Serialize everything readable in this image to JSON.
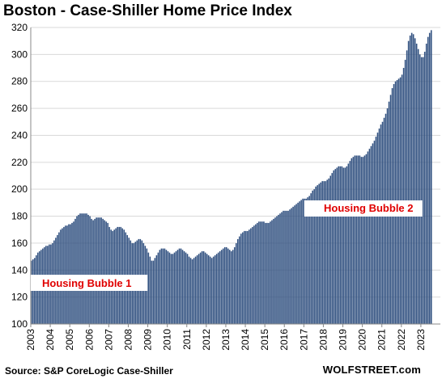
{
  "title": "Boston - Case-Shiller Home Price Index",
  "source": "Source: S&P CoreLogic Case-Shiller",
  "brand": "WOLFSTREET.com",
  "chart_data": {
    "type": "bar",
    "title": "Boston - Case-Shiller Home Price Index",
    "xlabel": "",
    "ylabel": "",
    "ylim": [
      100,
      320
    ],
    "yticks": [
      100,
      120,
      140,
      160,
      180,
      200,
      220,
      240,
      260,
      280,
      300,
      320
    ],
    "grid": true,
    "bar_color": "#2f4f7f",
    "frequency": "monthly",
    "x_start": "2003-01",
    "years": [
      2003,
      2004,
      2005,
      2006,
      2007,
      2008,
      2009,
      2010,
      2011,
      2012,
      2013,
      2014,
      2015,
      2016,
      2017,
      2018,
      2019,
      2020,
      2021,
      2022,
      2023
    ],
    "values": [
      147,
      148,
      149,
      151,
      153,
      154,
      155,
      156,
      157,
      158,
      158,
      159,
      159,
      160,
      162,
      164,
      166,
      168,
      170,
      171,
      172,
      173,
      173,
      174,
      174,
      175,
      176,
      178,
      180,
      181,
      182,
      182,
      182,
      182,
      182,
      181,
      180,
      178,
      177,
      178,
      179,
      179,
      179,
      179,
      178,
      177,
      176,
      175,
      172,
      170,
      169,
      170,
      171,
      172,
      172,
      172,
      171,
      170,
      168,
      166,
      164,
      162,
      160,
      160,
      161,
      162,
      163,
      163,
      162,
      160,
      158,
      156,
      153,
      150,
      147,
      147,
      149,
      151,
      153,
      155,
      156,
      156,
      156,
      155,
      154,
      153,
      152,
      152,
      153,
      154,
      155,
      156,
      156,
      155,
      154,
      153,
      152,
      150,
      149,
      148,
      149,
      150,
      151,
      152,
      153,
      154,
      154,
      153,
      152,
      151,
      150,
      149,
      150,
      151,
      152,
      153,
      154,
      155,
      156,
      157,
      157,
      156,
      155,
      154,
      155,
      157,
      160,
      163,
      165,
      167,
      168,
      169,
      169,
      169,
      170,
      171,
      172,
      173,
      174,
      175,
      176,
      176,
      176,
      176,
      175,
      175,
      175,
      176,
      177,
      178,
      179,
      180,
      181,
      182,
      183,
      184,
      184,
      184,
      184,
      185,
      186,
      187,
      188,
      189,
      190,
      191,
      192,
      193,
      193,
      193,
      194,
      195,
      197,
      199,
      200,
      202,
      203,
      204,
      205,
      206,
      206,
      206,
      207,
      208,
      210,
      212,
      214,
      215,
      216,
      217,
      217,
      217,
      216,
      216,
      217,
      219,
      221,
      223,
      224,
      225,
      225,
      225,
      225,
      224,
      224,
      225,
      226,
      228,
      230,
      232,
      234,
      236,
      239,
      242,
      245,
      248,
      250,
      253,
      256,
      260,
      265,
      270,
      275,
      278,
      280,
      281,
      282,
      283,
      285,
      290,
      296,
      303,
      310,
      314,
      316,
      315,
      312,
      308,
      304,
      300,
      298,
      298,
      302,
      308,
      313,
      316,
      318
    ],
    "annotations": [
      "Housing Bubble 1",
      "Housing Bubble 2"
    ]
  }
}
